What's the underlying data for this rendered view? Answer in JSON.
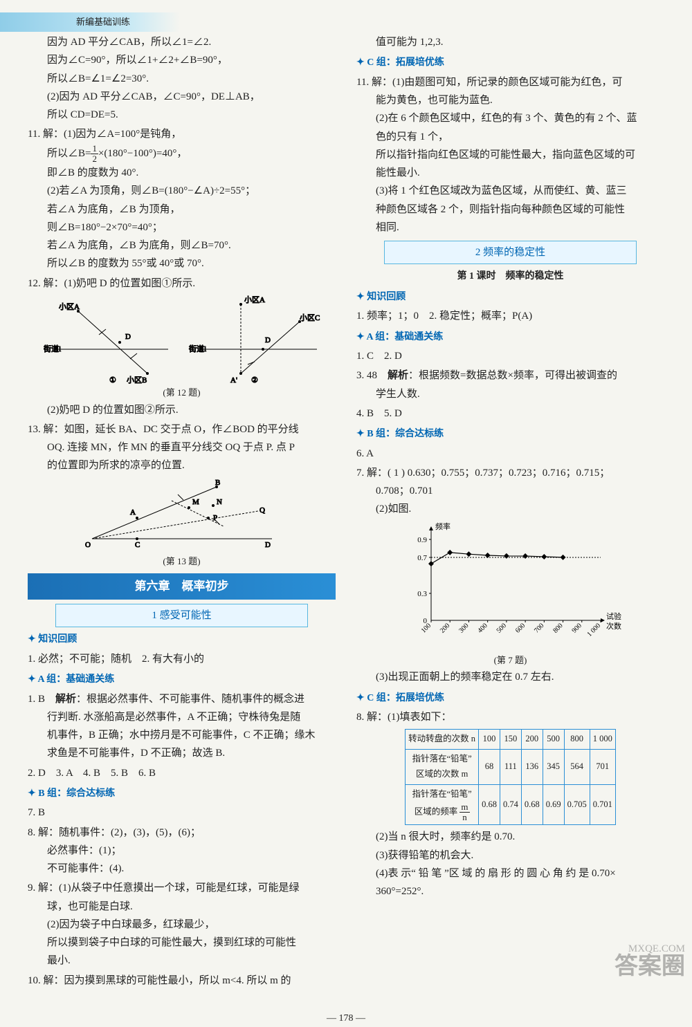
{
  "page_number": "178",
  "header_text": "新编基础训练",
  "watermark_main": "答案圈",
  "watermark_sub": "MXQE.COM",
  "colors": {
    "accent": "#0066b3",
    "chapter_bg_from": "#1b6fb5",
    "chapter_bg_to": "#2a8fd6",
    "section_border": "#57b7e0",
    "section_bg": "#e8f6ff",
    "page_bg": "#f5f5f0",
    "table_border": "#2a8fd6"
  },
  "left": {
    "top_lines": [
      "因为 AD 平分∠CAB，所以∠1=∠2.",
      "因为∠C=90°，所以∠1+∠2+∠B=90°，",
      "所以∠B=∠1=∠2=30°.",
      "(2)因为 AD 平分∠CAB，∠C=90°，DE⊥AB，",
      "所以 CD=DE=5."
    ],
    "q11_head": "11. 解：(1)因为∠A=100°是钝角，",
    "q11_frac_line_pre": "所以∠B=",
    "q11_frac_line_post": "×(180°−100°)=40°，",
    "q11_lines": [
      "即∠B 的度数为 40°.",
      "(2)若∠A 为顶角，则∠B=(180°−∠A)÷2=55°；",
      "若∠A 为底角，∠B 为顶角，",
      "则∠B=180°−2×70°=40°；",
      "若∠A 为底角，∠B 为底角，则∠B=70°.",
      "所以∠B 的度数为 55°或 40°或 70°."
    ],
    "q12_head": "12. 解：(1)奶吧 D 的位置如图①所示.",
    "q12_caption": "(第 12 题)",
    "q12_sub": "(2)奶吧 D 的位置如图②所示.",
    "q13_head": "13. 解：如图，延长 BA、DC 交于点 O，作∠BOD 的平分线",
    "q13_lines": [
      "OQ. 连接 MN，作 MN 的垂直平分线交 OQ 于点 P. 点 P",
      "的位置即为所求的凉亭的位置."
    ],
    "q13_caption": "(第 13 题)",
    "chapter": "第六章　概率初步",
    "section1": "1 感受可能性",
    "g_zh": "知识回顾",
    "zh1": "1. 必然；不可能；随机　2. 有大有小的",
    "g_a": "A 组：基础通关练",
    "a1_head": "1. B　",
    "a1_jiexi": "解析",
    "a1_text": "：根据必然事件、不可能事件、随机事件的概念进",
    "a1_lines": [
      "行判断. 水涨船高是必然事件，A 不正确；守株待兔是随",
      "机事件，B 正确；水中捞月是不可能事件，C 不正确；缘木",
      "求鱼是不可能事件，D 不正确；故选 B."
    ],
    "a_row": "2. D　3. A　4. B　5. B　6. B",
    "g_b": "B 组：综合达标练",
    "b7": "7. B",
    "b8_head": "8. 解：随机事件：(2)，(3)，(5)，(6)；",
    "b8_lines": [
      "必然事件：(1)；",
      "不可能事件：(4)."
    ],
    "b9_head": "9. 解：(1)从袋子中任意摸出一个球，可能是红球，可能是绿",
    "b9_lines": [
      "球，也可能是白球.",
      "(2)因为袋子中白球最多，红球最少，",
      "所以摸到袋子中白球的可能性最大，摸到红球的可能性",
      "最小."
    ],
    "b10": "10. 解：因为摸到黑球的可能性最小，所以 m<4. 所以 m 的",
    "fig12": {
      "type": "geometric-diagram",
      "labels": [
        "小区A",
        "小区B",
        "小区C",
        "街道l",
        "D",
        "A'"
      ],
      "sub_labels": [
        "①",
        "②"
      ]
    },
    "fig13": {
      "type": "geometric-diagram",
      "labels": [
        "A",
        "B",
        "C",
        "D",
        "M",
        "N",
        "O",
        "P",
        "Q"
      ]
    }
  },
  "right": {
    "top": "值可能为 1,2,3.",
    "g_c": "C 组：拓展培优练",
    "c11_head": "11. 解：(1)由题图可知，所记录的颜色区域可能为红色，可",
    "c11_lines": [
      "能为黄色，也可能为蓝色.",
      "(2)在 6 个颜色区域中，红色的有 3 个、黄色的有 2 个、蓝",
      "色的只有 1 个，",
      "所以指针指向红色区域的可能性最大，指向蓝色区域的可",
      "能性最小.",
      "(3)将 1 个红色区域改为蓝色区域，从而使红、黄、蓝三",
      "种颜色区域各 2 个，则指针指向每种颜色区域的可能性",
      "相同."
    ],
    "section2": "2 频率的稳定性",
    "subsection2": "第 1 课时　频率的稳定性",
    "g_zh2": "知识回顾",
    "zh2": "1. 频率；1；0　2. 稳定性；概率；P(A)",
    "g_a2": "A 组：基础通关练",
    "a2_row1": "1. C　2. D",
    "a2_q3_head": "3. 48　",
    "a2_q3_jiexi": "解析",
    "a2_q3_text": "：根据频数=数据总数×频率，可得出被调查的",
    "a2_q3_line2": "学生人数.",
    "a2_row2": "4. B　5. D",
    "g_b2": "B 组：综合达标练",
    "b6": "6. A",
    "b7_head": "7. 解：( 1 ) 0.630；0.755；0.737；0.723；0.716；0.715；",
    "b7_line2": "0.708；0.701",
    "b7_sub2": "(2)如图.",
    "chart7": {
      "type": "line",
      "ylabel": "频率",
      "xlabel": "试验\n次数",
      "caption": "(第 7 题)",
      "yticks": [
        0.3,
        0.7,
        0.9
      ],
      "ylim": [
        0,
        1.0
      ],
      "x_categories": [
        "100",
        "200",
        "300",
        "400",
        "500",
        "600",
        "700",
        "800",
        "900",
        "1 000"
      ],
      "values": [
        0.63,
        0.755,
        0.737,
        0.723,
        0.716,
        0.715,
        0.708,
        0.701
      ],
      "line_color": "#000000",
      "marker": "diamond",
      "marker_size": 4,
      "background_color": "#ffffff",
      "axis_color": "#000000",
      "fontsize": 11
    },
    "b7_sub3": "(3)出现正面朝上的频率稳定在 0.7 左右.",
    "g_c2": "C 组：拓展培优练",
    "c8_head": "8. 解：(1)填表如下：",
    "table8": {
      "type": "table",
      "columns": [
        "转动转盘的次数 n",
        "100",
        "150",
        "200",
        "500",
        "800",
        "1 000"
      ],
      "row1_head": "指针落在“铅笔”\n区域的次数 m",
      "row1": [
        "68",
        "111",
        "136",
        "345",
        "564",
        "701"
      ],
      "row2_head": "指针落在“铅笔”\n区域的频率",
      "row2_frac": {
        "n": "m",
        "d": "n"
      },
      "row2": [
        "0.68",
        "0.74",
        "0.68",
        "0.69",
        "0.705",
        "0.701"
      ]
    },
    "c8_lines": [
      "(2)当 n 很大时，频率约是 0.70.",
      "(3)获得铅笔的机会大.",
      "(4)表 示“ 铅 笔 ”区 域 的 扇 形 的 圆 心 角 约 是 0.70×",
      "360°=252°."
    ]
  }
}
